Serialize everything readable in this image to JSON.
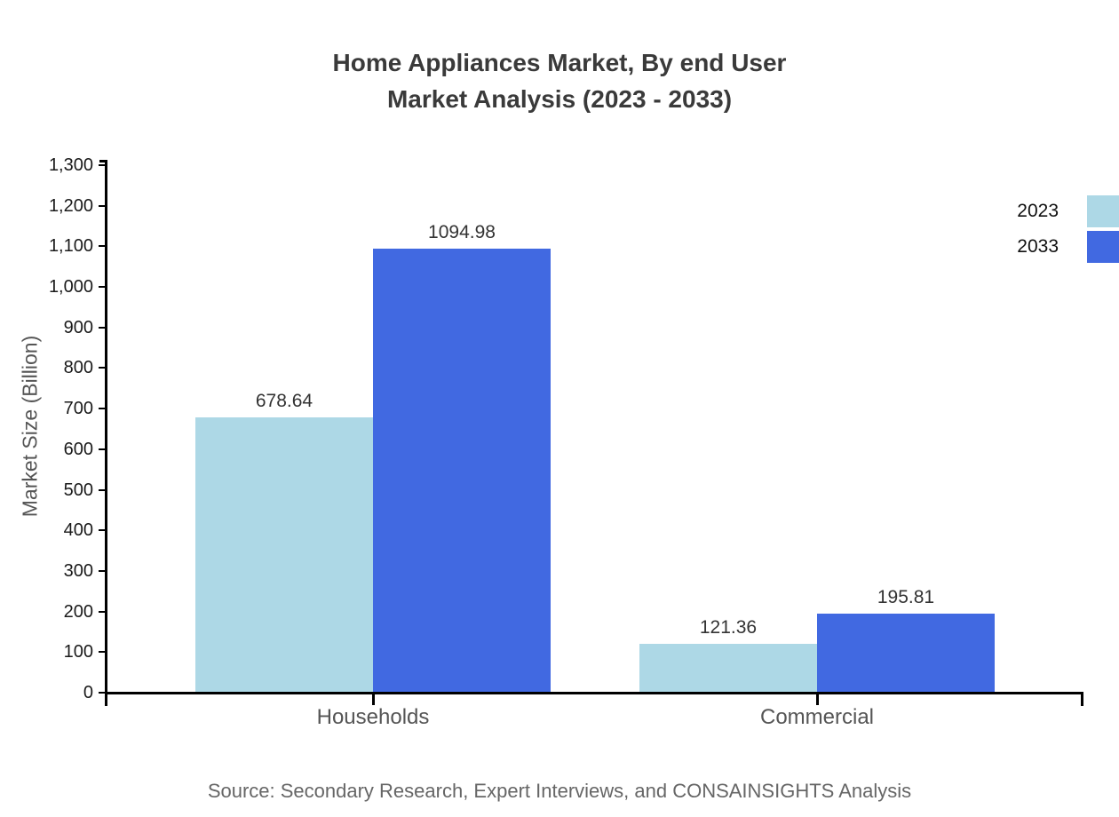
{
  "title": {
    "line1": "Home Appliances Market, By end User",
    "line2": "Market Analysis (2023 - 2033)"
  },
  "chart_data": {
    "type": "bar",
    "categories": [
      "Households",
      "Commercial"
    ],
    "series": [
      {
        "name": "2023",
        "color": "#ADD8E6",
        "values": [
          678.64,
          121.36
        ]
      },
      {
        "name": "2033",
        "color": "#4169E1",
        "values": [
          1094.98,
          195.81
        ]
      }
    ],
    "xlabel": "",
    "ylabel": "Market Size (Billion)",
    "ylim": [
      0,
      1300
    ],
    "ytick_step": 100,
    "ytick_format": "thousands-comma",
    "value_label_decimals": 2,
    "grid": false,
    "legend_position": "top-right",
    "axis_color": "#000000",
    "title_color": "#3a3a3a"
  },
  "source": "Source: Secondary Research, Expert Interviews, and CONSAINSIGHTS Analysis"
}
